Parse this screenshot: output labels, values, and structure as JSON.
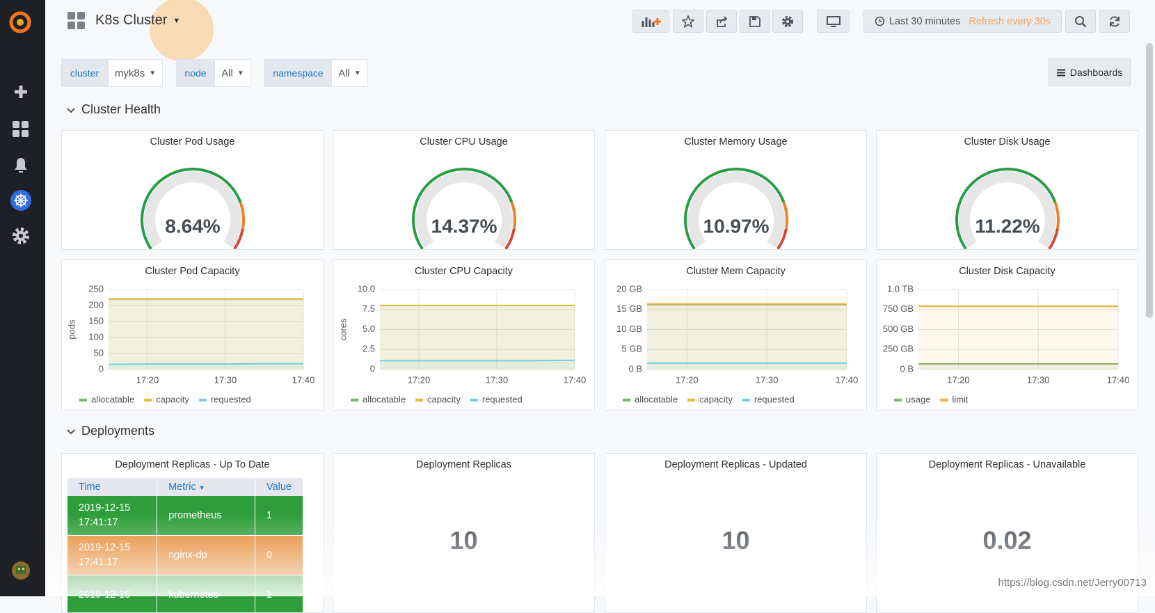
{
  "header": {
    "title": "K8s Cluster",
    "time_range": "Last 30 minutes",
    "refresh": "Refresh every 30s",
    "dashboards_button": "Dashboards"
  },
  "variables": [
    {
      "label": "cluster",
      "value": "myk8s"
    },
    {
      "label": "node",
      "value": "All"
    },
    {
      "label": "namespace",
      "value": "All"
    }
  ],
  "rows": [
    {
      "title": "Cluster Health"
    },
    {
      "title": "Deployments"
    }
  ],
  "gauges": [
    {
      "title": "Cluster Pod Usage",
      "value": "8.64%"
    },
    {
      "title": "Cluster CPU Usage",
      "value": "14.37%"
    },
    {
      "title": "Cluster Memory Usage",
      "value": "10.97%"
    },
    {
      "title": "Cluster Disk Usage",
      "value": "11.22%"
    }
  ],
  "charts": [
    {
      "type": "line",
      "title": "Cluster Pod Capacity",
      "ylabel": "pods",
      "categories": [
        null,
        "17:20",
        null,
        "17:30",
        null,
        "17:40"
      ],
      "ylim": [
        0,
        250
      ],
      "yticks": [
        0,
        50,
        100,
        150,
        200,
        250
      ],
      "grid": true,
      "series": [
        {
          "name": "allocatable",
          "color": "#7eb26d",
          "values": [
            220,
            220,
            220,
            220,
            220,
            220
          ]
        },
        {
          "name": "capacity",
          "color": "#eab839",
          "values": [
            220,
            220,
            220,
            220,
            220,
            220
          ]
        },
        {
          "name": "requested",
          "color": "#6ed0e0",
          "values": [
            16,
            17,
            17,
            17,
            18,
            18
          ]
        }
      ]
    },
    {
      "type": "line",
      "title": "Cluster CPU Capacity",
      "ylabel": "cores",
      "categories": [
        null,
        "17:20",
        null,
        "17:30",
        null,
        "17:40"
      ],
      "ylim": [
        0,
        10
      ],
      "yticks": [
        0,
        2.5,
        {
          "value": 5,
          "label": "5.0"
        },
        7.5,
        {
          "value": 10,
          "label": "10.0"
        }
      ],
      "grid": true,
      "series": [
        {
          "name": "allocatable",
          "color": "#7eb26d",
          "values": [
            8,
            8,
            8,
            8,
            8,
            8
          ]
        },
        {
          "name": "capacity",
          "color": "#eab839",
          "values": [
            8,
            8,
            8,
            8,
            8,
            8
          ]
        },
        {
          "name": "requested",
          "color": "#6ed0e0",
          "values": [
            1.1,
            1.1,
            1.1,
            1.1,
            1.1,
            1.15
          ]
        }
      ]
    },
    {
      "type": "line",
      "title": "Cluster Mem Capacity",
      "categories": [
        null,
        "17:20",
        null,
        "17:30",
        null,
        "17:40"
      ],
      "ylim": [
        0,
        20
      ],
      "yticks": [
        {
          "value": 0,
          "label": "0 B"
        },
        {
          "value": 5,
          "label": "5 GB"
        },
        {
          "value": 10,
          "label": "10 GB"
        },
        {
          "value": 15,
          "label": "15 GB"
        },
        {
          "value": 20,
          "label": "20 GB"
        }
      ],
      "grid": true,
      "series": [
        {
          "name": "allocatable",
          "color": "#7eb26d",
          "values": [
            16.2,
            16.2,
            16.2,
            16.2,
            16.2,
            16.2
          ]
        },
        {
          "name": "capacity",
          "color": "#eab839",
          "values": [
            16.4,
            16.4,
            16.4,
            16.4,
            16.4,
            16.4
          ]
        },
        {
          "name": "requested",
          "color": "#6ed0e0",
          "values": [
            1.6,
            1.6,
            1.6,
            1.6,
            1.6,
            1.6
          ]
        }
      ]
    },
    {
      "type": "line",
      "title": "Cluster Disk Capacity",
      "categories": [
        null,
        "17:20",
        null,
        "17:30",
        null,
        "17:40"
      ],
      "ylim": [
        0,
        1000
      ],
      "yticks": [
        {
          "value": 0,
          "label": "0 B"
        },
        {
          "value": 250,
          "label": "250 GB"
        },
        {
          "value": 500,
          "label": "500 GB"
        },
        {
          "value": 750,
          "label": "750 GB"
        },
        {
          "value": 1000,
          "label": "1.0 TB"
        }
      ],
      "grid": true,
      "series": [
        {
          "name": "usage",
          "color": "#7eb26d",
          "values": [
            70,
            70,
            70,
            70,
            70,
            70
          ]
        },
        {
          "name": "limit",
          "color": "#eab839",
          "values": [
            790,
            790,
            790,
            790,
            790,
            790
          ]
        }
      ]
    }
  ],
  "table": {
    "title": "Deployment Replicas - Up To Date",
    "columns": [
      "Time",
      "Metric",
      "Value"
    ],
    "rows": [
      [
        "2019-12-15 17:41:17",
        "prometheus",
        1
      ],
      [
        "2019-12-15 17:41:17",
        "nginx-dp",
        0
      ],
      [
        "2019-12-15",
        "kubernetes-",
        1
      ]
    ]
  },
  "stats": [
    {
      "title": "Deployment Replicas",
      "value": 10
    },
    {
      "title": "Deployment Replicas - Updated",
      "value": 10
    },
    {
      "title": "Deployment Replicas - Unavailable",
      "value": 0.02
    }
  ],
  "watermark": "https://blog.csdn.net/Jerry00713"
}
